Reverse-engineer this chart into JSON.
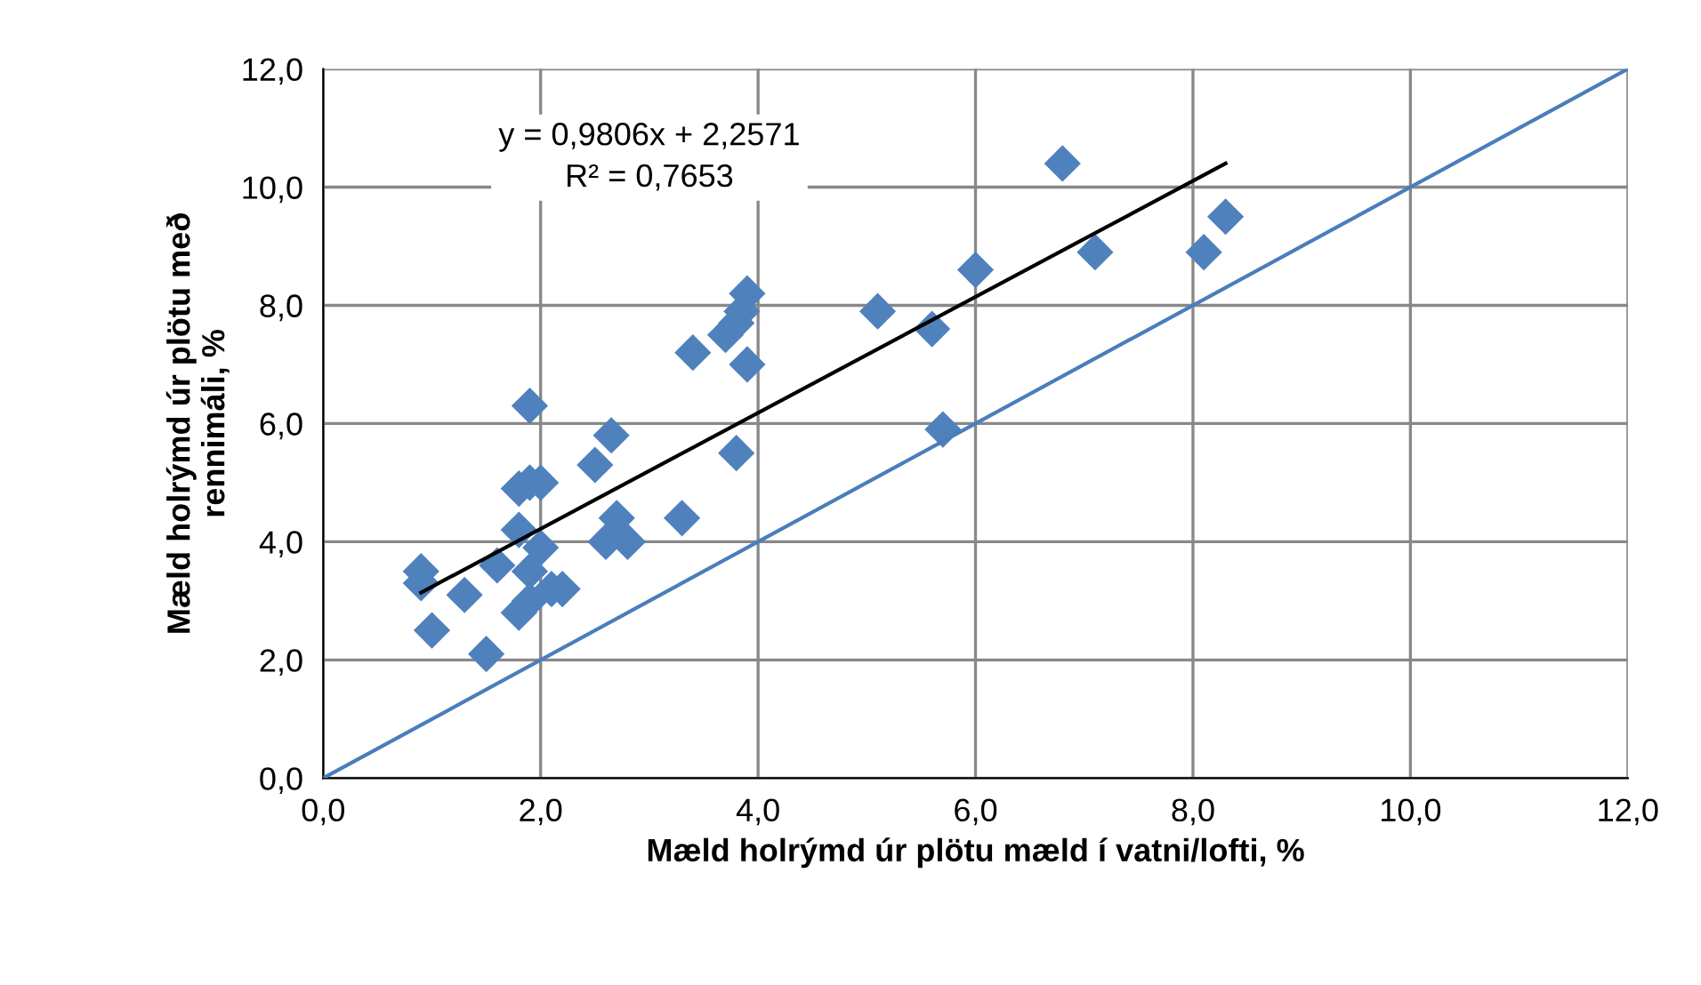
{
  "chart_data": {
    "type": "scatter",
    "xlabel": "Mæld holrýmd úr plötu mæld í vatni/lofti, %",
    "ylabel": "Mæld holrýmd úr plötu með\nrennimáli, %",
    "xlim": [
      0,
      12
    ],
    "ylim": [
      0,
      12
    ],
    "xticks": [
      {
        "value": 0,
        "label": "0,0"
      },
      {
        "value": 2,
        "label": "2,0"
      },
      {
        "value": 4,
        "label": "4,0"
      },
      {
        "value": 6,
        "label": "6,0"
      },
      {
        "value": 8,
        "label": "8,0"
      },
      {
        "value": 10,
        "label": "10,0"
      },
      {
        "value": 12,
        "label": "12,0"
      }
    ],
    "yticks": [
      {
        "value": 0,
        "label": "0,0"
      },
      {
        "value": 2,
        "label": "2,0"
      },
      {
        "value": 4,
        "label": "4,0"
      },
      {
        "value": 6,
        "label": "6,0"
      },
      {
        "value": 8,
        "label": "8,0"
      },
      {
        "value": 10,
        "label": "10,0"
      },
      {
        "value": 12,
        "label": "12,0"
      }
    ],
    "grid": true,
    "marker": "diamond",
    "annotations": [
      "y = 0,9806x + 2,2571\nR² = 0,7653"
    ],
    "series": [
      {
        "color": "#4f81bd",
        "x": [
          0.9,
          0.9,
          1.0,
          1.3,
          1.5,
          1.6,
          1.8,
          1.8,
          1.8,
          1.9,
          1.9,
          1.9,
          1.9,
          2.0,
          2.0,
          2.1,
          2.2,
          2.5,
          2.6,
          2.65,
          2.7,
          2.8,
          3.3,
          3.4,
          3.7,
          3.8,
          3.85,
          3.9,
          3.9,
          3.8,
          5.1,
          5.6,
          5.7,
          6.0,
          6.8,
          7.1,
          8.1,
          8.3
        ],
        "values": [
          3.5,
          3.3,
          2.5,
          3.1,
          2.1,
          3.6,
          4.9,
          4.2,
          2.8,
          6.3,
          5.0,
          3.5,
          3.0,
          5.0,
          3.9,
          3.2,
          3.2,
          5.3,
          4.0,
          5.8,
          4.4,
          4.0,
          4.4,
          7.2,
          7.5,
          7.7,
          7.9,
          8.2,
          7.0,
          5.5,
          7.9,
          7.6,
          5.9,
          8.6,
          10.4,
          8.9,
          8.9,
          9.5
        ]
      },
      {
        "type": "line",
        "color": "#000000",
        "marker": "none",
        "x": [
          0.9,
          8.3
        ],
        "values": [
          3.14,
          10.4
        ]
      },
      {
        "type": "line",
        "color": "#4a7ebb",
        "marker": "none",
        "x": [
          0,
          12
        ],
        "values": [
          0,
          12
        ]
      }
    ]
  }
}
